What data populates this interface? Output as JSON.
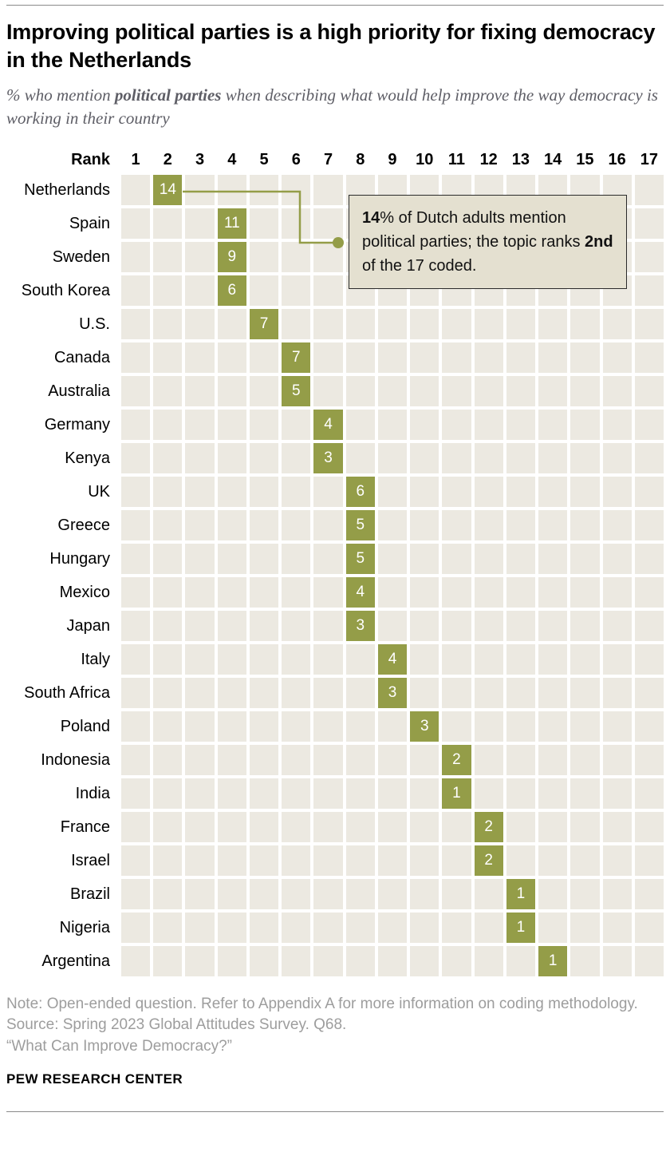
{
  "header": {
    "title": "Improving political parties is a high priority for fixing democracy in the Netherlands",
    "subtitle_prefix": "% who mention ",
    "subtitle_bold": "political parties",
    "subtitle_suffix": " when describing what would help improve the way democracy is working in their country"
  },
  "chart_data": {
    "type": "heatmap",
    "rank_header": "Rank",
    "ranks": [
      1,
      2,
      3,
      4,
      5,
      6,
      7,
      8,
      9,
      10,
      11,
      12,
      13,
      14,
      15,
      16,
      17
    ],
    "rows": [
      {
        "country": "Netherlands",
        "rank": 2,
        "value": 14
      },
      {
        "country": "Spain",
        "rank": 4,
        "value": 11
      },
      {
        "country": "Sweden",
        "rank": 4,
        "value": 9
      },
      {
        "country": "South Korea",
        "rank": 4,
        "value": 6
      },
      {
        "country": "U.S.",
        "rank": 5,
        "value": 7
      },
      {
        "country": "Canada",
        "rank": 6,
        "value": 7
      },
      {
        "country": "Australia",
        "rank": 6,
        "value": 5
      },
      {
        "country": "Germany",
        "rank": 7,
        "value": 4
      },
      {
        "country": "Kenya",
        "rank": 7,
        "value": 3
      },
      {
        "country": "UK",
        "rank": 8,
        "value": 6
      },
      {
        "country": "Greece",
        "rank": 8,
        "value": 5
      },
      {
        "country": "Hungary",
        "rank": 8,
        "value": 5
      },
      {
        "country": "Mexico",
        "rank": 8,
        "value": 4
      },
      {
        "country": "Japan",
        "rank": 8,
        "value": 3
      },
      {
        "country": "Italy",
        "rank": 9,
        "value": 4
      },
      {
        "country": "South Africa",
        "rank": 9,
        "value": 3
      },
      {
        "country": "Poland",
        "rank": 10,
        "value": 3
      },
      {
        "country": "Indonesia",
        "rank": 11,
        "value": 2
      },
      {
        "country": "India",
        "rank": 11,
        "value": 1
      },
      {
        "country": "France",
        "rank": 12,
        "value": 2
      },
      {
        "country": "Israel",
        "rank": 12,
        "value": 2
      },
      {
        "country": "Brazil",
        "rank": 13,
        "value": 1
      },
      {
        "country": "Nigeria",
        "rank": 13,
        "value": 1
      },
      {
        "country": "Argentina",
        "rank": 14,
        "value": 1
      }
    ],
    "colors": {
      "cell_background": "#ece9e1",
      "cell_active": "#949d48",
      "callout_background": "#e4e0d0"
    }
  },
  "callout": {
    "bold_value": "14",
    "segment_1": "% of Dutch adults mention political parties; the topic ranks ",
    "bold_rank": "2nd",
    "segment_2": " of the 17 coded."
  },
  "notes": {
    "note_line": "Note: Open-ended question. Refer to Appendix A for more information on coding methodology.",
    "source_line": "Source: Spring 2023 Global Attitudes Survey. Q68.",
    "survey_line": "“What Can Improve Democracy?”"
  },
  "footer": {
    "brand": "PEW RESEARCH CENTER"
  }
}
